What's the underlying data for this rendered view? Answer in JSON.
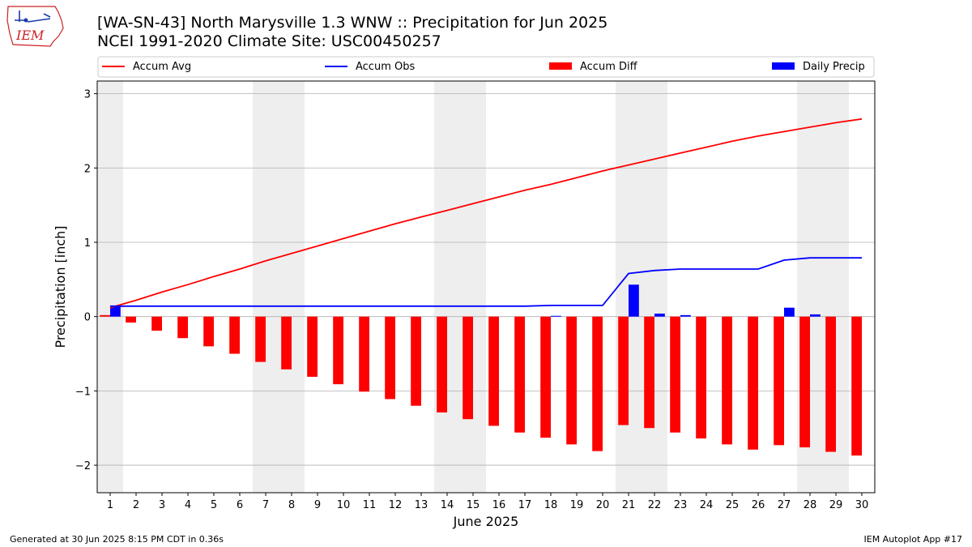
{
  "header": {
    "title_line1": "[WA-SN-43] North Marysville 1.3 WNW :: Precipitation for Jun 2025",
    "title_line2": "NCEI 1991-2020 Climate Site: USC00450257",
    "logo_text": "IEM"
  },
  "footer": {
    "left": "Generated at 30 Jun 2025 8:15 PM CDT in 0.36s",
    "right": "IEM Autoplot App #17"
  },
  "colors": {
    "avg": "#ff0000",
    "obs": "#0000ff",
    "diff": "#ff0000",
    "precip": "#0000ff",
    "weekend_band": "#eeeeee",
    "grid": "#b0b0b0"
  },
  "chart_data": {
    "type": "bar",
    "xlabel": "June 2025",
    "ylabel": "Precipitation [inch]",
    "xlim": [
      0.5,
      30.5
    ],
    "ylim": [
      -2.37,
      3.17
    ],
    "yticks": [
      -2,
      -1,
      0,
      1,
      2,
      3
    ],
    "ytick_labels": [
      "−2",
      "−1",
      "0",
      "1",
      "2",
      "3"
    ],
    "grid": "horizontal",
    "legend_position": "top",
    "days": [
      1,
      2,
      3,
      4,
      5,
      6,
      7,
      8,
      9,
      10,
      11,
      12,
      13,
      14,
      15,
      16,
      17,
      18,
      19,
      20,
      21,
      22,
      23,
      24,
      25,
      26,
      27,
      28,
      29,
      30
    ],
    "shaded_days": [
      [
        0.5,
        1.5
      ],
      [
        6.5,
        8.5
      ],
      [
        13.5,
        15.5
      ],
      [
        20.5,
        22.5
      ],
      [
        27.5,
        29.5
      ]
    ],
    "series": [
      {
        "name": "Accum Avg",
        "kind": "line",
        "values": [
          0.12,
          0.22,
          0.33,
          0.43,
          0.54,
          0.64,
          0.75,
          0.85,
          0.95,
          1.05,
          1.15,
          1.25,
          1.34,
          1.43,
          1.52,
          1.61,
          1.7,
          1.78,
          1.87,
          1.96,
          2.04,
          2.12,
          2.2,
          2.28,
          2.36,
          2.43,
          2.49,
          2.55,
          2.61,
          2.66
        ]
      },
      {
        "name": "Accum Obs",
        "kind": "line",
        "values": [
          0.14,
          0.14,
          0.14,
          0.14,
          0.14,
          0.14,
          0.14,
          0.14,
          0.14,
          0.14,
          0.14,
          0.14,
          0.14,
          0.14,
          0.14,
          0.14,
          0.14,
          0.15,
          0.15,
          0.15,
          0.58,
          0.62,
          0.64,
          0.64,
          0.64,
          0.64,
          0.76,
          0.79,
          0.79,
          0.79
        ]
      },
      {
        "name": "Accum Diff",
        "kind": "bar",
        "values": [
          0.02,
          -0.08,
          -0.19,
          -0.29,
          -0.4,
          -0.5,
          -0.61,
          -0.71,
          -0.81,
          -0.91,
          -1.01,
          -1.11,
          -1.2,
          -1.29,
          -1.38,
          -1.47,
          -1.56,
          -1.63,
          -1.72,
          -1.81,
          -1.46,
          -1.5,
          -1.56,
          -1.64,
          -1.72,
          -1.79,
          -1.73,
          -1.76,
          -1.82,
          -1.87
        ]
      },
      {
        "name": "Daily Precip",
        "kind": "bar",
        "values": [
          0.14,
          0,
          0,
          0,
          0,
          0,
          0,
          0,
          0,
          0,
          0,
          0,
          0,
          0,
          0,
          0,
          0,
          0.01,
          0,
          0,
          0.43,
          0.04,
          0.02,
          0,
          0,
          0,
          0.12,
          0.03,
          0,
          0
        ]
      }
    ]
  }
}
